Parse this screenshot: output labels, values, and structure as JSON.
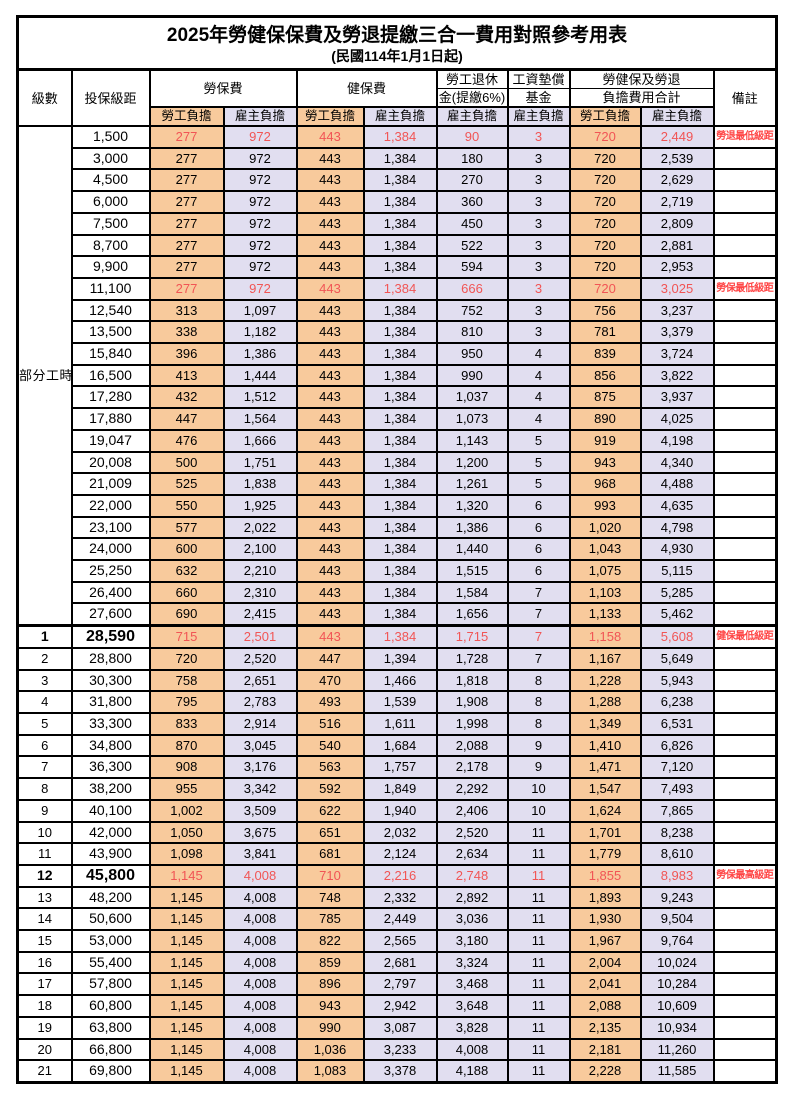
{
  "page": {
    "title": "2025年勞健保保費及勞退提繳三合一費用對照參考用表",
    "subtitle": "(民國114年1月1日起)"
  },
  "header": {
    "level": "級數",
    "bracket": "投保級距",
    "labor_fee": "勞保費",
    "health_fee": "健保費",
    "pension_line1": "勞工退休",
    "pension_line2": "金(提繳6%)",
    "wage_fund_line1": "工資墊償",
    "wage_fund_line2": "基金",
    "total_line1": "勞健保及勞退",
    "total_line2": "負擔費用合計",
    "note": "備註",
    "worker_label": "勞工負擔",
    "employer_label": "雇主負擔"
  },
  "part_time_label": "部分工時",
  "part_time_row_count": 23,
  "colors": {
    "worker_bg": "#f8ca9c",
    "employer_bg": "#e1def0",
    "highlight_text": "#f15555",
    "note_text": "#ff4545",
    "border": "#000000"
  },
  "rows": [
    {
      "level": null,
      "bracket": "1,500",
      "values": [
        "277",
        "972",
        "443",
        "1,384",
        "90",
        "3",
        "720",
        "2,449"
      ],
      "note": "勞退最低級距",
      "red": true
    },
    {
      "level": null,
      "bracket": "3,000",
      "values": [
        "277",
        "972",
        "443",
        "1,384",
        "180",
        "3",
        "720",
        "2,539"
      ],
      "note": ""
    },
    {
      "level": null,
      "bracket": "4,500",
      "values": [
        "277",
        "972",
        "443",
        "1,384",
        "270",
        "3",
        "720",
        "2,629"
      ],
      "note": ""
    },
    {
      "level": null,
      "bracket": "6,000",
      "values": [
        "277",
        "972",
        "443",
        "1,384",
        "360",
        "3",
        "720",
        "2,719"
      ],
      "note": ""
    },
    {
      "level": null,
      "bracket": "7,500",
      "values": [
        "277",
        "972",
        "443",
        "1,384",
        "450",
        "3",
        "720",
        "2,809"
      ],
      "note": ""
    },
    {
      "level": null,
      "bracket": "8,700",
      "values": [
        "277",
        "972",
        "443",
        "1,384",
        "522",
        "3",
        "720",
        "2,881"
      ],
      "note": ""
    },
    {
      "level": null,
      "bracket": "9,900",
      "values": [
        "277",
        "972",
        "443",
        "1,384",
        "594",
        "3",
        "720",
        "2,953"
      ],
      "note": ""
    },
    {
      "level": null,
      "bracket": "11,100",
      "values": [
        "277",
        "972",
        "443",
        "1,384",
        "666",
        "3",
        "720",
        "3,025"
      ],
      "note": "勞保最低級距",
      "red": true
    },
    {
      "level": null,
      "bracket": "12,540",
      "values": [
        "313",
        "1,097",
        "443",
        "1,384",
        "752",
        "3",
        "756",
        "3,237"
      ],
      "note": ""
    },
    {
      "level": null,
      "bracket": "13,500",
      "values": [
        "338",
        "1,182",
        "443",
        "1,384",
        "810",
        "3",
        "781",
        "3,379"
      ],
      "note": ""
    },
    {
      "level": null,
      "bracket": "15,840",
      "values": [
        "396",
        "1,386",
        "443",
        "1,384",
        "950",
        "4",
        "839",
        "3,724"
      ],
      "note": ""
    },
    {
      "level": null,
      "bracket": "16,500",
      "values": [
        "413",
        "1,444",
        "443",
        "1,384",
        "990",
        "4",
        "856",
        "3,822"
      ],
      "note": ""
    },
    {
      "level": null,
      "bracket": "17,280",
      "values": [
        "432",
        "1,512",
        "443",
        "1,384",
        "1,037",
        "4",
        "875",
        "3,937"
      ],
      "note": ""
    },
    {
      "level": null,
      "bracket": "17,880",
      "values": [
        "447",
        "1,564",
        "443",
        "1,384",
        "1,073",
        "4",
        "890",
        "4,025"
      ],
      "note": ""
    },
    {
      "level": null,
      "bracket": "19,047",
      "values": [
        "476",
        "1,666",
        "443",
        "1,384",
        "1,143",
        "5",
        "919",
        "4,198"
      ],
      "note": ""
    },
    {
      "level": null,
      "bracket": "20,008",
      "values": [
        "500",
        "1,751",
        "443",
        "1,384",
        "1,200",
        "5",
        "943",
        "4,340"
      ],
      "note": ""
    },
    {
      "level": null,
      "bracket": "21,009",
      "values": [
        "525",
        "1,838",
        "443",
        "1,384",
        "1,261",
        "5",
        "968",
        "4,488"
      ],
      "note": ""
    },
    {
      "level": null,
      "bracket": "22,000",
      "values": [
        "550",
        "1,925",
        "443",
        "1,384",
        "1,320",
        "6",
        "993",
        "4,635"
      ],
      "note": ""
    },
    {
      "level": null,
      "bracket": "23,100",
      "values": [
        "577",
        "2,022",
        "443",
        "1,384",
        "1,386",
        "6",
        "1,020",
        "4,798"
      ],
      "note": ""
    },
    {
      "level": null,
      "bracket": "24,000",
      "values": [
        "600",
        "2,100",
        "443",
        "1,384",
        "1,440",
        "6",
        "1,043",
        "4,930"
      ],
      "note": ""
    },
    {
      "level": null,
      "bracket": "25,250",
      "values": [
        "632",
        "2,210",
        "443",
        "1,384",
        "1,515",
        "6",
        "1,075",
        "5,115"
      ],
      "note": ""
    },
    {
      "level": null,
      "bracket": "26,400",
      "values": [
        "660",
        "2,310",
        "443",
        "1,384",
        "1,584",
        "7",
        "1,103",
        "5,285"
      ],
      "note": ""
    },
    {
      "level": null,
      "bracket": "27,600",
      "values": [
        "690",
        "2,415",
        "443",
        "1,384",
        "1,656",
        "7",
        "1,133",
        "5,462"
      ],
      "note": ""
    },
    {
      "level": "1",
      "bracket": "28,590",
      "values": [
        "715",
        "2,501",
        "443",
        "1,384",
        "1,715",
        "7",
        "1,158",
        "5,608"
      ],
      "note": "健保最低級距",
      "red": true,
      "em": true,
      "sec": true
    },
    {
      "level": "2",
      "bracket": "28,800",
      "values": [
        "720",
        "2,520",
        "447",
        "1,394",
        "1,728",
        "7",
        "1,167",
        "5,649"
      ],
      "note": ""
    },
    {
      "level": "3",
      "bracket": "30,300",
      "values": [
        "758",
        "2,651",
        "470",
        "1,466",
        "1,818",
        "8",
        "1,228",
        "5,943"
      ],
      "note": ""
    },
    {
      "level": "4",
      "bracket": "31,800",
      "values": [
        "795",
        "2,783",
        "493",
        "1,539",
        "1,908",
        "8",
        "1,288",
        "6,238"
      ],
      "note": ""
    },
    {
      "level": "5",
      "bracket": "33,300",
      "values": [
        "833",
        "2,914",
        "516",
        "1,611",
        "1,998",
        "8",
        "1,349",
        "6,531"
      ],
      "note": ""
    },
    {
      "level": "6",
      "bracket": "34,800",
      "values": [
        "870",
        "3,045",
        "540",
        "1,684",
        "2,088",
        "9",
        "1,410",
        "6,826"
      ],
      "note": ""
    },
    {
      "level": "7",
      "bracket": "36,300",
      "values": [
        "908",
        "3,176",
        "563",
        "1,757",
        "2,178",
        "9",
        "1,471",
        "7,120"
      ],
      "note": ""
    },
    {
      "level": "8",
      "bracket": "38,200",
      "values": [
        "955",
        "3,342",
        "592",
        "1,849",
        "2,292",
        "10",
        "1,547",
        "7,493"
      ],
      "note": ""
    },
    {
      "level": "9",
      "bracket": "40,100",
      "values": [
        "1,002",
        "3,509",
        "622",
        "1,940",
        "2,406",
        "10",
        "1,624",
        "7,865"
      ],
      "note": ""
    },
    {
      "level": "10",
      "bracket": "42,000",
      "values": [
        "1,050",
        "3,675",
        "651",
        "2,032",
        "2,520",
        "11",
        "1,701",
        "8,238"
      ],
      "note": ""
    },
    {
      "level": "11",
      "bracket": "43,900",
      "values": [
        "1,098",
        "3,841",
        "681",
        "2,124",
        "2,634",
        "11",
        "1,779",
        "8,610"
      ],
      "note": ""
    },
    {
      "level": "12",
      "bracket": "45,800",
      "values": [
        "1,145",
        "4,008",
        "710",
        "2,216",
        "2,748",
        "11",
        "1,855",
        "8,983"
      ],
      "note": "勞保最高級距",
      "red": true,
      "em": true
    },
    {
      "level": "13",
      "bracket": "48,200",
      "values": [
        "1,145",
        "4,008",
        "748",
        "2,332",
        "2,892",
        "11",
        "1,893",
        "9,243"
      ],
      "note": ""
    },
    {
      "level": "14",
      "bracket": "50,600",
      "values": [
        "1,145",
        "4,008",
        "785",
        "2,449",
        "3,036",
        "11",
        "1,930",
        "9,504"
      ],
      "note": ""
    },
    {
      "level": "15",
      "bracket": "53,000",
      "values": [
        "1,145",
        "4,008",
        "822",
        "2,565",
        "3,180",
        "11",
        "1,967",
        "9,764"
      ],
      "note": ""
    },
    {
      "level": "16",
      "bracket": "55,400",
      "values": [
        "1,145",
        "4,008",
        "859",
        "2,681",
        "3,324",
        "11",
        "2,004",
        "10,024"
      ],
      "note": ""
    },
    {
      "level": "17",
      "bracket": "57,800",
      "values": [
        "1,145",
        "4,008",
        "896",
        "2,797",
        "3,468",
        "11",
        "2,041",
        "10,284"
      ],
      "note": ""
    },
    {
      "level": "18",
      "bracket": "60,800",
      "values": [
        "1,145",
        "4,008",
        "943",
        "2,942",
        "3,648",
        "11",
        "2,088",
        "10,609"
      ],
      "note": ""
    },
    {
      "level": "19",
      "bracket": "63,800",
      "values": [
        "1,145",
        "4,008",
        "990",
        "3,087",
        "3,828",
        "11",
        "2,135",
        "10,934"
      ],
      "note": ""
    },
    {
      "level": "20",
      "bracket": "66,800",
      "values": [
        "1,145",
        "4,008",
        "1,036",
        "3,233",
        "4,008",
        "11",
        "2,181",
        "11,260"
      ],
      "note": ""
    },
    {
      "level": "21",
      "bracket": "69,800",
      "values": [
        "1,145",
        "4,008",
        "1,083",
        "3,378",
        "4,188",
        "11",
        "2,228",
        "11,585"
      ],
      "note": ""
    }
  ]
}
